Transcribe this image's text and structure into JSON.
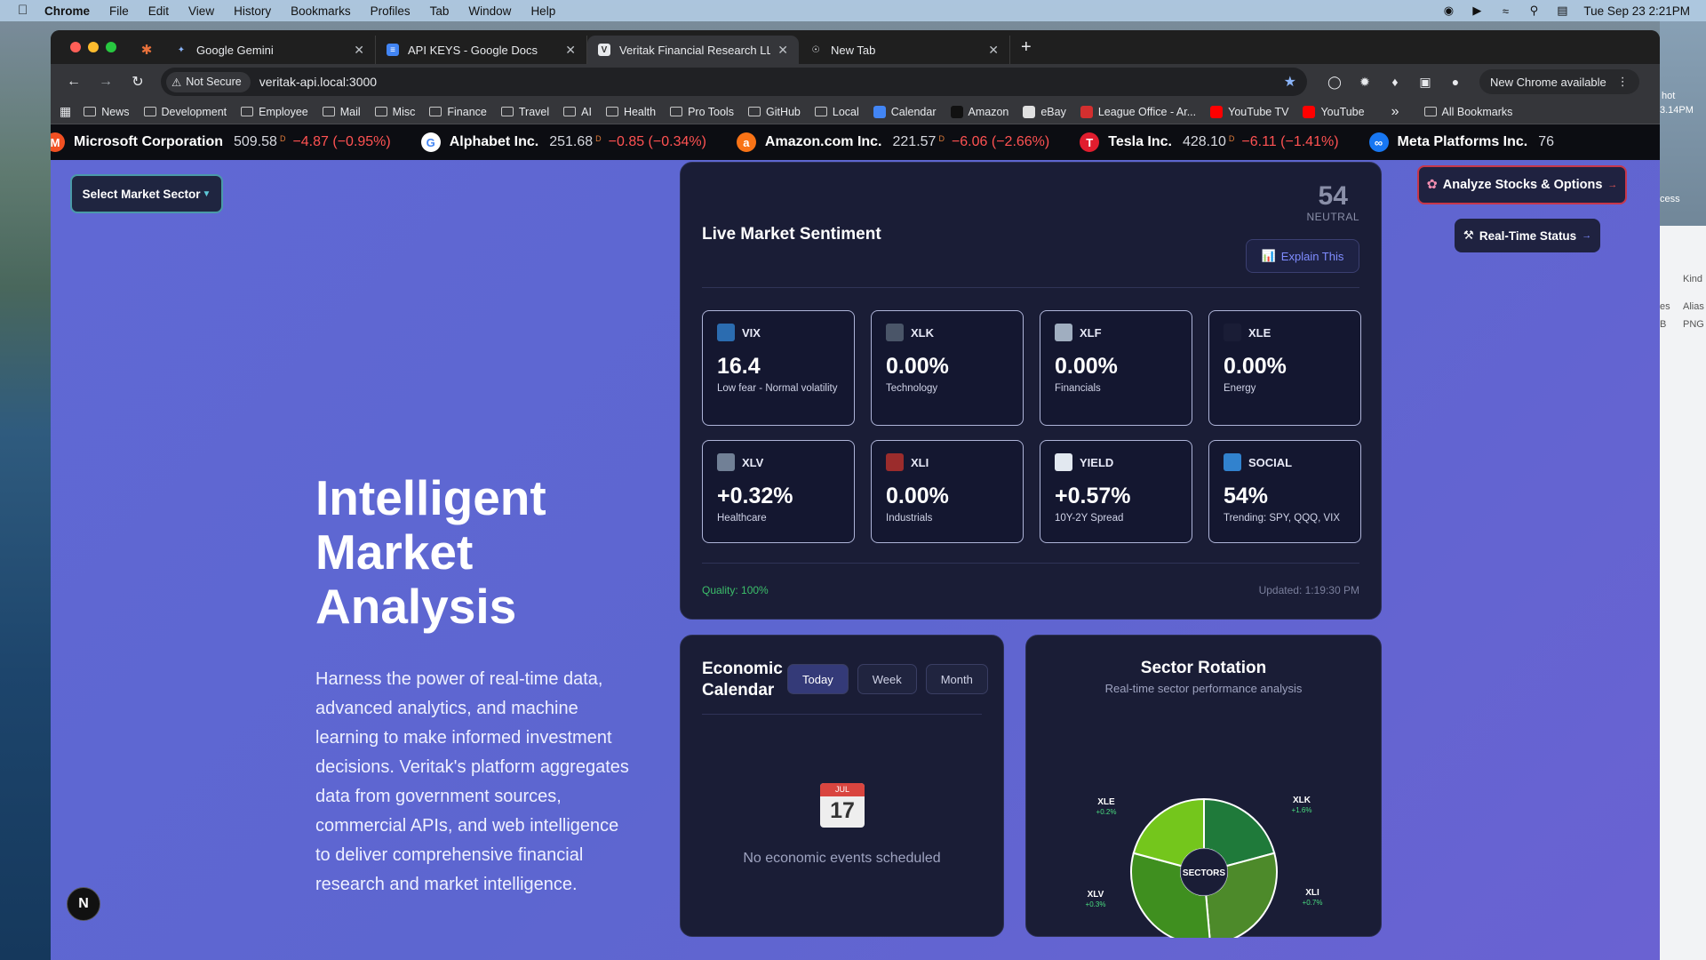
{
  "menubar": {
    "app": "Chrome",
    "items": [
      "File",
      "Edit",
      "View",
      "History",
      "Bookmarks",
      "Profiles",
      "Tab",
      "Window",
      "Help"
    ],
    "datetime": "Tue Sep 23  2:21PM"
  },
  "tabs": [
    {
      "title": "Google Gemini",
      "icon": "gemini-icon",
      "active": false
    },
    {
      "title": "API KEYS - Google Docs",
      "icon": "docs-icon",
      "active": false
    },
    {
      "title": "Veritak Financial Research LLC",
      "icon": "veritak-icon",
      "active": true
    },
    {
      "title": "New Tab",
      "icon": "chrome-icon",
      "active": false
    }
  ],
  "toolbar": {
    "security": "Not Secure",
    "url": "veritak-api.local:3000",
    "update": "New Chrome available"
  },
  "bookmarks": [
    {
      "label": "News",
      "type": "folder"
    },
    {
      "label": "Development",
      "type": "folder"
    },
    {
      "label": "Employee",
      "type": "folder"
    },
    {
      "label": "Mail",
      "type": "folder"
    },
    {
      "label": "Misc",
      "type": "folder"
    },
    {
      "label": "Finance",
      "type": "folder"
    },
    {
      "label": "Travel",
      "type": "folder"
    },
    {
      "label": "AI",
      "type": "folder"
    },
    {
      "label": "Health",
      "type": "folder"
    },
    {
      "label": "Pro Tools",
      "type": "folder"
    },
    {
      "label": "GitHub",
      "type": "folder"
    },
    {
      "label": "Local",
      "type": "folder"
    },
    {
      "label": "Calendar",
      "type": "site",
      "color": "#4285f4"
    },
    {
      "label": "Amazon",
      "type": "site",
      "color": "#111111"
    },
    {
      "label": "eBay",
      "type": "site",
      "color": "#e0e0e0"
    },
    {
      "label": "League Office - Ar...",
      "type": "site",
      "color": "#d32f2f"
    },
    {
      "label": "YouTube TV",
      "type": "site",
      "color": "#ff0000"
    },
    {
      "label": "YouTube",
      "type": "site",
      "color": "#ff0000"
    }
  ],
  "bookmarks_all": "All Bookmarks",
  "ticker": [
    {
      "name": "Microsoft Corporation",
      "price": "509.58",
      "flag": "D",
      "change": "−4.87 (−0.95%)",
      "logo": "M",
      "color": "#f25022"
    },
    {
      "name": "Alphabet Inc.",
      "price": "251.68",
      "flag": "D",
      "change": "−0.85 (−0.34%)",
      "logo": "G",
      "color": "#ffffff"
    },
    {
      "name": "Amazon.com Inc.",
      "price": "221.57",
      "flag": "D",
      "change": "−6.06 (−2.66%)",
      "logo": "a",
      "color": "#f97316"
    },
    {
      "name": "Tesla Inc.",
      "price": "428.10",
      "flag": "D",
      "change": "−6.11 (−1.41%)",
      "logo": "T",
      "color": "#e11d2e"
    },
    {
      "name": "Meta Platforms Inc.",
      "price": "76",
      "flag": "",
      "change": "",
      "logo": "∞",
      "color": "#1877f2"
    }
  ],
  "sector_button": "Select Market Sector",
  "hero": {
    "title": "Intelligent Market Analysis",
    "text": "Harness the power of real-time data, advanced analytics, and machine learning to make informed investment decisions. Veritak's platform aggregates data from government sources, commercial APIs, and web intelligence to deliver comprehensive financial research and market intelligence."
  },
  "sentiment": {
    "title": "Live Market Sentiment",
    "score": "54",
    "score_label": "NEUTRAL",
    "explain": "Explain This",
    "metrics": [
      {
        "symbol": "VIX",
        "value": "16.4",
        "sub": "Low fear - Normal volatility",
        "icon": "chart-icon",
        "icon_bg": "#2b6cb0"
      },
      {
        "symbol": "XLK",
        "value": "0.00%",
        "sub": "Technology",
        "icon": "laptop-icon",
        "icon_bg": "#4a5568"
      },
      {
        "symbol": "XLF",
        "value": "0.00%",
        "sub": "Financials",
        "icon": "bank-icon",
        "icon_bg": "#a0aec0"
      },
      {
        "symbol": "XLE",
        "value": "0.00%",
        "sub": "Energy",
        "icon": "lightning-icon",
        "icon_bg": "#1a1d36"
      },
      {
        "symbol": "XLV",
        "value": "+0.32%",
        "sub": "Healthcare",
        "icon": "hospital-icon",
        "icon_bg": "#718096"
      },
      {
        "symbol": "XLI",
        "value": "0.00%",
        "sub": "Industrials",
        "icon": "factory-icon",
        "icon_bg": "#9b2c2c"
      },
      {
        "symbol": "YIELD",
        "value": "+0.57%",
        "sub": "10Y-2Y Spread",
        "icon": "trend-icon",
        "icon_bg": "#e2e8f0"
      },
      {
        "symbol": "SOCIAL",
        "value": "54%",
        "sub": "Trending: SPY, QQQ, VIX",
        "icon": "globe-icon",
        "icon_bg": "#3182ce"
      }
    ],
    "quality": "Quality: 100%",
    "updated": "Updated: 1:19:30 PM"
  },
  "actions": {
    "analyze": "Analyze Stocks & Options",
    "realtime": "Real-Time Status"
  },
  "economic": {
    "title": "Economic Calendar",
    "periods": [
      "Today",
      "Week",
      "Month"
    ],
    "active_period": "Today",
    "cal_month": "JUL",
    "cal_day": "17",
    "empty": "No economic events scheduled"
  },
  "rotation": {
    "title": "Sector Rotation",
    "subtitle": "Real-time sector performance analysis",
    "center": "SECTORS",
    "sectors": [
      {
        "name": "XLE",
        "change": "+0.2%",
        "color": "#74c61c"
      },
      {
        "name": "XLK",
        "change": "+1.6%",
        "color": "#1f7a3a"
      },
      {
        "name": "XLI",
        "change": "+0.7%",
        "color": "#4d8a2a"
      },
      {
        "name": "XLV",
        "change": "+0.3%",
        "color": "#3f8f1f"
      }
    ]
  },
  "badge": "N",
  "side_panel": {
    "labels": [
      "hot",
      "3.14PM",
      "cess",
      "Kind",
      "es",
      "Alias",
      "B",
      "PNG"
    ]
  }
}
